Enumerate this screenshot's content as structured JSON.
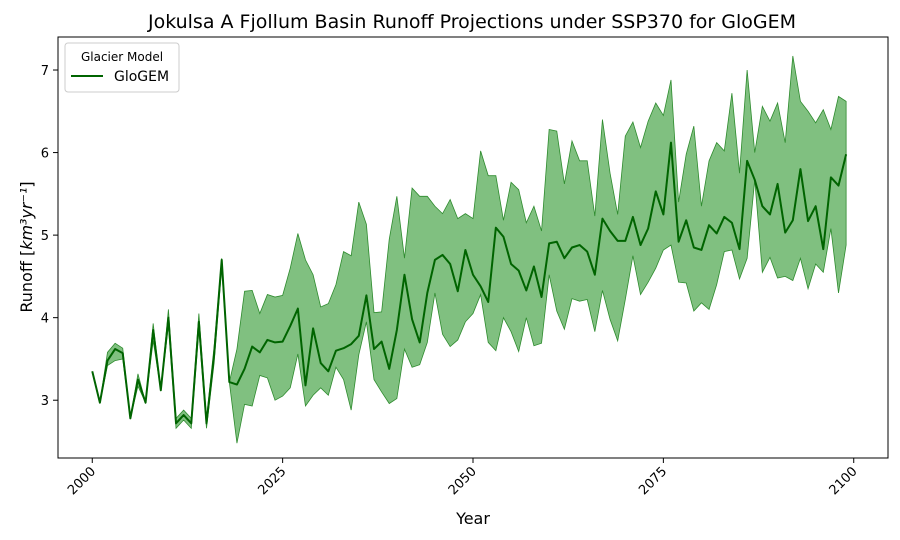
{
  "chart_data": {
    "type": "line",
    "title": "Jokulsa A Fjollum Basin Runoff Projections under SSP370 for GloGEM",
    "xlabel": "Year",
    "ylabel_main": "Runoff [",
    "ylabel_unit": "km³yr⁻¹",
    "ylabel_close": "]",
    "xlim": [
      1995.5,
      2104.5
    ],
    "ylim": [
      2.3,
      7.4
    ],
    "x_ticks": [
      2000,
      2025,
      2050,
      2075,
      2100
    ],
    "x_tick_labels": [
      "2000",
      "2025",
      "2050",
      "2075",
      "2100"
    ],
    "y_ticks": [
      3,
      4,
      5,
      6,
      7
    ],
    "y_tick_labels": [
      "3",
      "4",
      "5",
      "6",
      "7"
    ],
    "legend": {
      "title": "Glacier Model",
      "position": "top-left"
    },
    "colors": {
      "line": "#006400",
      "band_fill": "#4fa84f",
      "band_edge": "#2e8b2e"
    },
    "series": [
      {
        "name": "GloGEM",
        "x": [
          2000,
          2001,
          2002,
          2003,
          2004,
          2005,
          2006,
          2007,
          2008,
          2009,
          2010,
          2011,
          2012,
          2013,
          2014,
          2015,
          2016,
          2017,
          2018,
          2019,
          2020,
          2021,
          2022,
          2023,
          2024,
          2025,
          2026,
          2027,
          2028,
          2029,
          2030,
          2031,
          2032,
          2033,
          2034,
          2035,
          2036,
          2037,
          2038,
          2039,
          2040,
          2041,
          2042,
          2043,
          2044,
          2045,
          2046,
          2047,
          2048,
          2049,
          2050,
          2051,
          2052,
          2053,
          2054,
          2055,
          2056,
          2057,
          2058,
          2059,
          2060,
          2061,
          2062,
          2063,
          2064,
          2065,
          2066,
          2067,
          2068,
          2069,
          2070,
          2071,
          2072,
          2073,
          2074,
          2075,
          2076,
          2077,
          2078,
          2079,
          2080,
          2081,
          2082,
          2083,
          2084,
          2085,
          2086,
          2087,
          2088,
          2089,
          2090,
          2091,
          2092,
          2093,
          2094,
          2095,
          2096,
          2097,
          2098,
          2099
        ],
        "values": [
          3.35,
          2.97,
          3.48,
          3.62,
          3.57,
          2.78,
          3.25,
          2.97,
          3.85,
          3.12,
          4.0,
          2.72,
          2.82,
          2.72,
          3.95,
          2.72,
          3.55,
          4.7,
          3.22,
          3.19,
          3.38,
          3.65,
          3.58,
          3.73,
          3.7,
          3.71,
          3.9,
          4.11,
          3.18,
          3.87,
          3.45,
          3.35,
          3.6,
          3.63,
          3.68,
          3.78,
          4.27,
          3.62,
          3.71,
          3.38,
          3.85,
          4.52,
          3.98,
          3.7,
          4.3,
          4.7,
          4.76,
          4.65,
          4.32,
          4.82,
          4.52,
          4.38,
          4.19,
          5.09,
          4.98,
          4.65,
          4.57,
          4.33,
          4.62,
          4.25,
          4.9,
          4.92,
          4.72,
          4.85,
          4.88,
          4.8,
          4.52,
          5.2,
          5.05,
          4.93,
          4.93,
          5.22,
          4.88,
          5.08,
          5.53,
          5.25,
          6.12,
          4.92,
          5.18,
          4.85,
          4.82,
          5.12,
          5.02,
          5.22,
          5.15,
          4.83,
          5.9,
          5.67,
          5.35,
          5.25,
          5.62,
          5.03,
          5.18,
          5.8,
          5.17,
          5.35,
          4.83,
          5.7,
          5.6,
          5.98
        ],
        "lower": [
          3.35,
          2.97,
          3.42,
          3.48,
          3.5,
          2.78,
          3.17,
          2.97,
          3.72,
          3.12,
          3.9,
          2.66,
          2.76,
          2.66,
          3.85,
          2.66,
          3.45,
          4.6,
          3.22,
          2.48,
          2.95,
          2.93,
          3.3,
          3.27,
          3.0,
          3.05,
          3.15,
          3.56,
          2.93,
          3.06,
          3.15,
          3.06,
          3.4,
          3.25,
          2.88,
          3.55,
          3.95,
          3.25,
          3.1,
          2.96,
          3.02,
          3.62,
          3.4,
          3.43,
          3.7,
          4.3,
          3.8,
          3.65,
          3.73,
          3.95,
          4.05,
          4.28,
          3.7,
          3.6,
          4.0,
          3.83,
          3.59,
          4.0,
          3.66,
          3.69,
          4.52,
          4.08,
          3.86,
          4.23,
          4.2,
          4.22,
          3.83,
          4.33,
          3.98,
          3.72,
          4.22,
          4.75,
          4.28,
          4.43,
          4.6,
          4.82,
          4.88,
          4.43,
          4.42,
          4.08,
          4.18,
          4.1,
          4.4,
          4.8,
          4.82,
          4.47,
          4.72,
          5.67,
          4.55,
          4.73,
          4.48,
          4.5,
          4.45,
          4.72,
          4.35,
          4.65,
          4.55,
          5.08,
          4.3,
          4.88
        ],
        "upper": [
          3.35,
          2.97,
          3.58,
          3.69,
          3.63,
          2.78,
          3.32,
          2.97,
          3.93,
          3.12,
          4.1,
          2.78,
          2.88,
          2.78,
          4.05,
          2.78,
          3.65,
          4.72,
          3.22,
          3.62,
          4.32,
          4.33,
          4.05,
          4.28,
          4.25,
          4.27,
          4.6,
          5.02,
          4.7,
          4.52,
          4.13,
          4.17,
          4.4,
          4.8,
          4.75,
          5.4,
          5.13,
          4.06,
          4.07,
          4.95,
          5.47,
          4.72,
          5.57,
          5.47,
          5.47,
          5.35,
          5.26,
          5.43,
          5.2,
          5.26,
          5.2,
          6.02,
          5.72,
          5.72,
          5.18,
          5.64,
          5.55,
          5.15,
          5.35,
          5.05,
          6.28,
          6.26,
          5.62,
          6.14,
          5.9,
          5.9,
          5.23,
          6.4,
          5.75,
          5.25,
          6.2,
          6.37,
          6.06,
          6.38,
          6.6,
          6.45,
          6.88,
          5.4,
          5.98,
          6.32,
          5.35,
          5.9,
          6.12,
          6.02,
          6.72,
          5.75,
          7.0,
          6.0,
          6.56,
          6.38,
          6.6,
          6.12,
          7.17,
          6.62,
          6.5,
          6.36,
          6.52,
          6.28,
          6.68,
          6.62
        ]
      }
    ]
  }
}
